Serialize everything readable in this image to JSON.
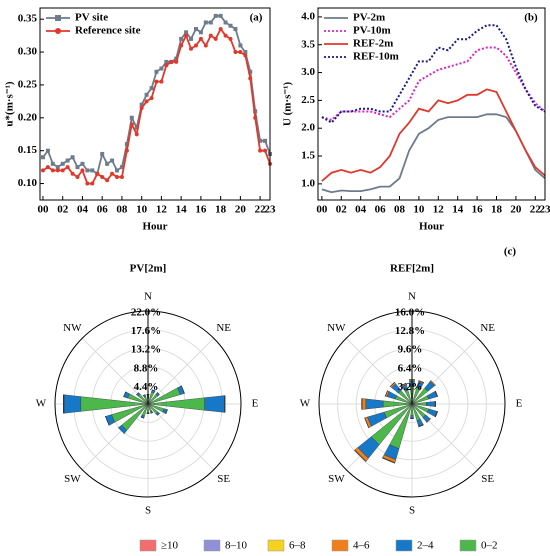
{
  "chart_data": [
    {
      "type": "line",
      "panel": "(a)",
      "xlabel": "Hour",
      "ylabel": "u*(m·s⁻¹)",
      "x": [
        0,
        0.5,
        1,
        1.5,
        2,
        2.5,
        3,
        3.5,
        4,
        4.5,
        5,
        5.5,
        6,
        6.5,
        7,
        7.5,
        8,
        8.5,
        9,
        9.5,
        10,
        10.5,
        11,
        11.5,
        12,
        12.5,
        13,
        13.5,
        14,
        14.5,
        15,
        15.5,
        16,
        16.5,
        17,
        17.5,
        18,
        18.5,
        19,
        19.5,
        20,
        20.5,
        21,
        21.5,
        22,
        22.5,
        23
      ],
      "series": [
        {
          "name": "PV site",
          "color": "#6d7b8a",
          "marker": "square",
          "style": "solid",
          "values": [
            0.14,
            0.15,
            0.13,
            0.125,
            0.13,
            0.135,
            0.14,
            0.125,
            0.13,
            0.12,
            0.12,
            0.115,
            0.145,
            0.13,
            0.135,
            0.12,
            0.125,
            0.16,
            0.2,
            0.185,
            0.22,
            0.235,
            0.245,
            0.27,
            0.275,
            0.285,
            0.285,
            0.29,
            0.32,
            0.33,
            0.32,
            0.335,
            0.33,
            0.345,
            0.345,
            0.355,
            0.355,
            0.345,
            0.34,
            0.335,
            0.31,
            0.3,
            0.27,
            0.21,
            0.165,
            0.165,
            0.145
          ]
        },
        {
          "name": "Reference site",
          "color": "#e0382b",
          "marker": "circle",
          "style": "solid",
          "values": [
            0.12,
            0.125,
            0.12,
            0.12,
            0.12,
            0.125,
            0.115,
            0.11,
            0.12,
            0.1,
            0.1,
            0.115,
            0.11,
            0.105,
            0.115,
            0.11,
            0.11,
            0.15,
            0.19,
            0.175,
            0.215,
            0.225,
            0.23,
            0.255,
            0.255,
            0.28,
            0.285,
            0.285,
            0.31,
            0.325,
            0.305,
            0.31,
            0.32,
            0.31,
            0.325,
            0.32,
            0.335,
            0.325,
            0.32,
            0.3,
            0.3,
            0.295,
            0.26,
            0.2,
            0.15,
            0.15,
            0.13
          ]
        }
      ],
      "xlim": [
        -0.3,
        23
      ],
      "xticks": [
        {
          "value": 0,
          "label": "00"
        },
        {
          "value": 2,
          "label": "02"
        },
        {
          "value": 4,
          "label": "04"
        },
        {
          "value": 6,
          "label": "06"
        },
        {
          "value": 8,
          "label": "08"
        },
        10,
        12,
        14,
        16,
        18,
        20,
        22,
        23
      ],
      "ylim": [
        0.075,
        0.367
      ],
      "yticks": [
        {
          "value": 0.1,
          "label": "0.10"
        },
        0.15,
        {
          "value": 0.2,
          "label": "0.20"
        },
        0.25,
        {
          "value": 0.3,
          "label": "0.30"
        },
        0.35
      ]
    },
    {
      "type": "line",
      "panel": "(b)",
      "xlabel": "Hour",
      "ylabel": "U (m·s⁻¹)",
      "x": [
        0,
        1,
        2,
        3,
        4,
        5,
        6,
        7,
        8,
        9,
        10,
        11,
        12,
        13,
        14,
        15,
        16,
        17,
        18,
        19,
        20,
        21,
        22,
        23
      ],
      "series": [
        {
          "name": "PV-2m",
          "color": "#6d7b8a",
          "style": "solid",
          "values": [
            0.9,
            0.85,
            0.88,
            0.87,
            0.87,
            0.9,
            0.95,
            0.95,
            1.1,
            1.6,
            1.9,
            2.0,
            2.15,
            2.2,
            2.2,
            2.2,
            2.2,
            2.25,
            2.25,
            2.2,
            1.95,
            1.6,
            1.25,
            1.1
          ]
        },
        {
          "name": "PV-10m",
          "color": "#e020c8",
          "style": "dotted",
          "values": [
            2.2,
            2.15,
            2.3,
            2.3,
            2.3,
            2.3,
            2.25,
            2.2,
            2.35,
            2.5,
            2.85,
            2.95,
            3.05,
            3.1,
            3.15,
            3.2,
            3.4,
            3.45,
            3.45,
            3.3,
            3.0,
            2.7,
            2.45,
            2.3
          ]
        },
        {
          "name": "REF-2m",
          "color": "#e0382b",
          "style": "solid",
          "values": [
            1.05,
            1.2,
            1.25,
            1.2,
            1.25,
            1.2,
            1.3,
            1.5,
            1.9,
            2.1,
            2.35,
            2.3,
            2.5,
            2.45,
            2.5,
            2.6,
            2.6,
            2.7,
            2.65,
            2.3,
            1.95,
            1.6,
            1.3,
            1.15
          ]
        },
        {
          "name": "REF-10m",
          "color": "#1a1a8c",
          "style": "dotted",
          "values": [
            2.2,
            2.1,
            2.3,
            2.3,
            2.35,
            2.35,
            2.3,
            2.3,
            2.6,
            2.9,
            3.2,
            3.2,
            3.45,
            3.4,
            3.6,
            3.6,
            3.75,
            3.85,
            3.85,
            3.6,
            3.1,
            2.7,
            2.4,
            2.3
          ]
        }
      ],
      "xlim": [
        -0.4,
        23
      ],
      "xticks": [
        {
          "value": 0,
          "label": "00"
        },
        {
          "value": 2,
          "label": "02"
        },
        {
          "value": 4,
          "label": "04"
        },
        {
          "value": 6,
          "label": "06"
        },
        {
          "value": 8,
          "label": "08"
        },
        10,
        12,
        14,
        16,
        18,
        20,
        22,
        23
      ],
      "ylim": [
        0.71,
        4.16
      ],
      "yticks": [
        {
          "value": 1,
          "label": "1.0"
        },
        1.5,
        {
          "value": 2,
          "label": "2.0"
        },
        2.5,
        {
          "value": 3,
          "label": "3.0"
        },
        3.5,
        {
          "value": 4,
          "label": "4.0"
        }
      ]
    },
    {
      "type": "wind_rose",
      "title": "PV[2m]",
      "panel": "(c)",
      "categories": [
        "N",
        null,
        "NE",
        null,
        "E",
        null,
        "SE",
        null,
        "S",
        null,
        "SW",
        null,
        "W",
        null,
        "NW",
        null
      ],
      "rlim": [
        0,
        22
      ],
      "rticks": [
        {
          "value": 4.4,
          "label": "4.4%"
        },
        {
          "value": 8.8,
          "label": "8.8%"
        },
        {
          "value": 13.2,
          "label": "13.2%"
        },
        {
          "value": 17.6,
          "label": "17.6%"
        },
        {
          "value": 22,
          "label": "22.0%"
        }
      ],
      "series": [
        {
          "values": [
            0,
            0,
            0,
            0,
            0,
            0,
            0,
            0,
            0,
            0,
            0,
            0,
            0,
            0,
            0,
            0
          ]
        },
        {
          "values": [
            0,
            0,
            0,
            0,
            0,
            0,
            0,
            0,
            0,
            0,
            0,
            0,
            0,
            0,
            0,
            0
          ]
        },
        {
          "values": [
            0,
            0,
            0,
            0,
            0,
            0,
            0,
            0,
            0,
            0,
            0,
            0,
            0,
            0,
            0,
            0
          ]
        },
        {
          "values": [
            0,
            0,
            0,
            0,
            0.1,
            0,
            0,
            0,
            0,
            0,
            0,
            0,
            0.1,
            0,
            0,
            0
          ]
        },
        {
          "values": [
            0.3,
            0.5,
            0.5,
            1,
            4.7,
            0.8,
            0.5,
            0.3,
            0.3,
            0.5,
            1,
            1.5,
            4,
            1,
            0.5,
            0.3
          ]
        },
        {
          "values": [
            2,
            3,
            3,
            8,
            13.5,
            4,
            3,
            2,
            2,
            3,
            8,
            9,
            16,
            5,
            3,
            2
          ]
        }
      ]
    },
    {
      "type": "wind_rose",
      "title": "REF[2m]",
      "categories": [
        "N",
        null,
        "NE",
        null,
        "E",
        null,
        "SE",
        null,
        "S",
        null,
        "SW",
        null,
        "W",
        null,
        "NW",
        null
      ],
      "rlim": [
        0,
        16
      ],
      "rticks": [
        {
          "value": 3.2,
          "label": "3.2%"
        },
        {
          "value": 6.4,
          "label": "6.4%"
        },
        {
          "value": 9.6,
          "label": "9.6%"
        },
        {
          "value": 12.8,
          "label": "12.8%"
        },
        {
          "value": 16,
          "label": "16.0%"
        }
      ],
      "series": [
        {
          "values": [
            0,
            0,
            0,
            0,
            0,
            0,
            0,
            0,
            0,
            0,
            0,
            0,
            0,
            0,
            0,
            0
          ]
        },
        {
          "values": [
            0,
            0,
            0,
            0,
            0,
            0,
            0,
            0,
            0,
            0,
            0,
            0,
            0,
            0,
            0,
            0
          ]
        },
        {
          "values": [
            0,
            0,
            0,
            0,
            0,
            0,
            0,
            0,
            0,
            0.1,
            0.1,
            0,
            0.1,
            0,
            0,
            0
          ]
        },
        {
          "values": [
            0.2,
            0.2,
            0.2,
            0.1,
            0.1,
            0.1,
            0.1,
            0.1,
            0,
            0.5,
            0.6,
            0.5,
            0.6,
            0.3,
            0.3,
            0.2
          ]
        },
        {
          "values": [
            1,
            1,
            1.5,
            1.5,
            1.5,
            1.5,
            1,
            1,
            0.5,
            2,
            3,
            3,
            3,
            1.5,
            1.5,
            1
          ]
        },
        {
          "values": [
            3,
            3,
            3.5,
            3,
            2.5,
            3,
            3,
            3,
            2,
            8,
            9,
            5,
            5,
            3,
            3,
            2.5
          ]
        }
      ]
    }
  ],
  "legend": {
    "items": [
      {
        "name": "≥10",
        "color": "#f26d6d"
      },
      {
        "name": "8–10",
        "color": "#9090d8"
      },
      {
        "name": "6–8",
        "color": "#f5d21f"
      },
      {
        "name": "4–6",
        "color": "#f07f1b"
      },
      {
        "name": "2–4",
        "color": "#1878c8"
      },
      {
        "name": "0–2",
        "color": "#4cb84c"
      }
    ]
  }
}
